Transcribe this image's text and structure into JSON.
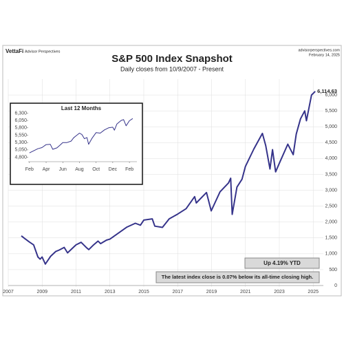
{
  "header": {
    "brand": "VettaFi",
    "brand_sub": "Advisor Perspectives",
    "source": "advisorperspectives.com",
    "date": "February 14, 2025"
  },
  "chart_data": [
    {
      "type": "line",
      "title": "S&P 500 Index Snapshot",
      "subtitle": "Daily closes from 10/9/2007 - Present",
      "color": "#35338a",
      "grid": true,
      "x": [
        2007.77,
        2008.0,
        2008.25,
        2008.5,
        2008.75,
        2008.88,
        2009.0,
        2009.19,
        2009.5,
        2009.8,
        2010.0,
        2010.3,
        2010.5,
        2010.8,
        2011.0,
        2011.3,
        2011.6,
        2011.75,
        2012.0,
        2012.3,
        2012.45,
        2012.8,
        2013.0,
        2013.5,
        2014.0,
        2014.5,
        2014.8,
        2015.0,
        2015.5,
        2015.65,
        2016.1,
        2016.5,
        2017.0,
        2017.5,
        2018.0,
        2018.1,
        2018.7,
        2018.98,
        2019.5,
        2020.0,
        2020.13,
        2020.22,
        2020.5,
        2020.8,
        2021.0,
        2021.5,
        2022.0,
        2022.2,
        2022.45,
        2022.6,
        2022.78,
        2023.0,
        2023.5,
        2023.82,
        2024.0,
        2024.25,
        2024.5,
        2024.6,
        2024.9,
        2025.12
      ],
      "values": [
        1565,
        1468,
        1370,
        1280,
        900,
        830,
        900,
        677,
        920,
        1070,
        1115,
        1200,
        1030,
        1180,
        1280,
        1360,
        1200,
        1130,
        1260,
        1400,
        1320,
        1430,
        1460,
        1650,
        1840,
        1960,
        1900,
        2060,
        2100,
        1870,
        1830,
        2100,
        2250,
        2420,
        2800,
        2600,
        2930,
        2350,
        2950,
        3230,
        3380,
        2240,
        3100,
        3350,
        3750,
        4300,
        4790,
        4400,
        3670,
        4280,
        3580,
        3850,
        4450,
        4120,
        4770,
        5250,
        5500,
        5190,
        6000,
        6114.63
      ],
      "value_labels": [
        null,
        null,
        null,
        null,
        null,
        null,
        null,
        null,
        null,
        null,
        null,
        null,
        null,
        null,
        null,
        null,
        null,
        null,
        null,
        null,
        null,
        null,
        null,
        null,
        null,
        null,
        null,
        null,
        null,
        null,
        null,
        null,
        null,
        null,
        null,
        null,
        null,
        null,
        null,
        null,
        null,
        null,
        null,
        null,
        null,
        null,
        null,
        null,
        null,
        null,
        null,
        null,
        null,
        null,
        null,
        null,
        null,
        null,
        null,
        "6,114.63"
      ],
      "xlim": [
        2007,
        2025.6
      ],
      "xticks": [
        2007,
        2009,
        2011,
        2013,
        2015,
        2017,
        2019,
        2021,
        2023,
        2025
      ],
      "ylim": [
        0,
        6500
      ],
      "yticks": [
        0,
        500,
        {
          "value": 1000,
          "label": "1,000"
        },
        {
          "value": 1500,
          "label": "1,500"
        },
        {
          "value": 2000,
          "label": "2,000"
        },
        {
          "value": 2500,
          "label": "2,500"
        },
        {
          "value": 3000,
          "label": "3,000"
        },
        {
          "value": 3500,
          "label": "3,500"
        },
        {
          "value": 4000,
          "label": "4,000"
        },
        {
          "value": 4500,
          "label": "4,500"
        },
        {
          "value": 5000,
          "label": "5,000"
        },
        {
          "value": 5500,
          "label": "5,500"
        },
        {
          "value": 6000,
          "label": "6,000"
        }
      ],
      "annotations": [
        "Up 4.19% YTD",
        "The latest index close is 0.07% below its all-time closing high."
      ]
    },
    {
      "type": "line",
      "title": "Last 12 Months",
      "color": "#35338a",
      "x": [
        0,
        0.5,
        1,
        1.5,
        2,
        2.5,
        2.8,
        3.3,
        3.7,
        4,
        4.5,
        5,
        5.3,
        5.6,
        6,
        6.3,
        6.6,
        6.9,
        7.1,
        7.5,
        8,
        8.5,
        9,
        9.5,
        10,
        10.2,
        10.5,
        11,
        11.3,
        11.6,
        12,
        12.4
      ],
      "values": [
        4950,
        5020,
        5090,
        5130,
        5230,
        5240,
        5070,
        5120,
        5220,
        5300,
        5300,
        5350,
        5460,
        5530,
        5620,
        5570,
        5430,
        5470,
        5240,
        5440,
        5640,
        5620,
        5730,
        5800,
        5820,
        5720,
        5930,
        6050,
        6080,
        5870,
        6040,
        6114.63
      ],
      "xlim": [
        -0.15,
        12.9
      ],
      "xticks": [
        {
          "value": 0,
          "label": "Feb"
        },
        {
          "value": 2,
          "label": "Apr"
        },
        {
          "value": 4,
          "label": "Jun"
        },
        {
          "value": 6,
          "label": "Aug"
        },
        {
          "value": 8,
          "label": "Oct"
        },
        {
          "value": 10,
          "label": "Dec"
        },
        {
          "value": 12,
          "label": "Feb"
        }
      ],
      "ylim": [
        4650,
        6450
      ],
      "yticks": [
        {
          "value": 4800,
          "label": "4,800"
        },
        {
          "value": 5050,
          "label": "5,050"
        },
        {
          "value": 5300,
          "label": "5,300"
        },
        {
          "value": 5550,
          "label": "5,550"
        },
        {
          "value": 5800,
          "label": "5,800"
        },
        {
          "value": 6050,
          "label": "6,050"
        },
        {
          "value": 6300,
          "label": "6,300"
        }
      ]
    }
  ]
}
